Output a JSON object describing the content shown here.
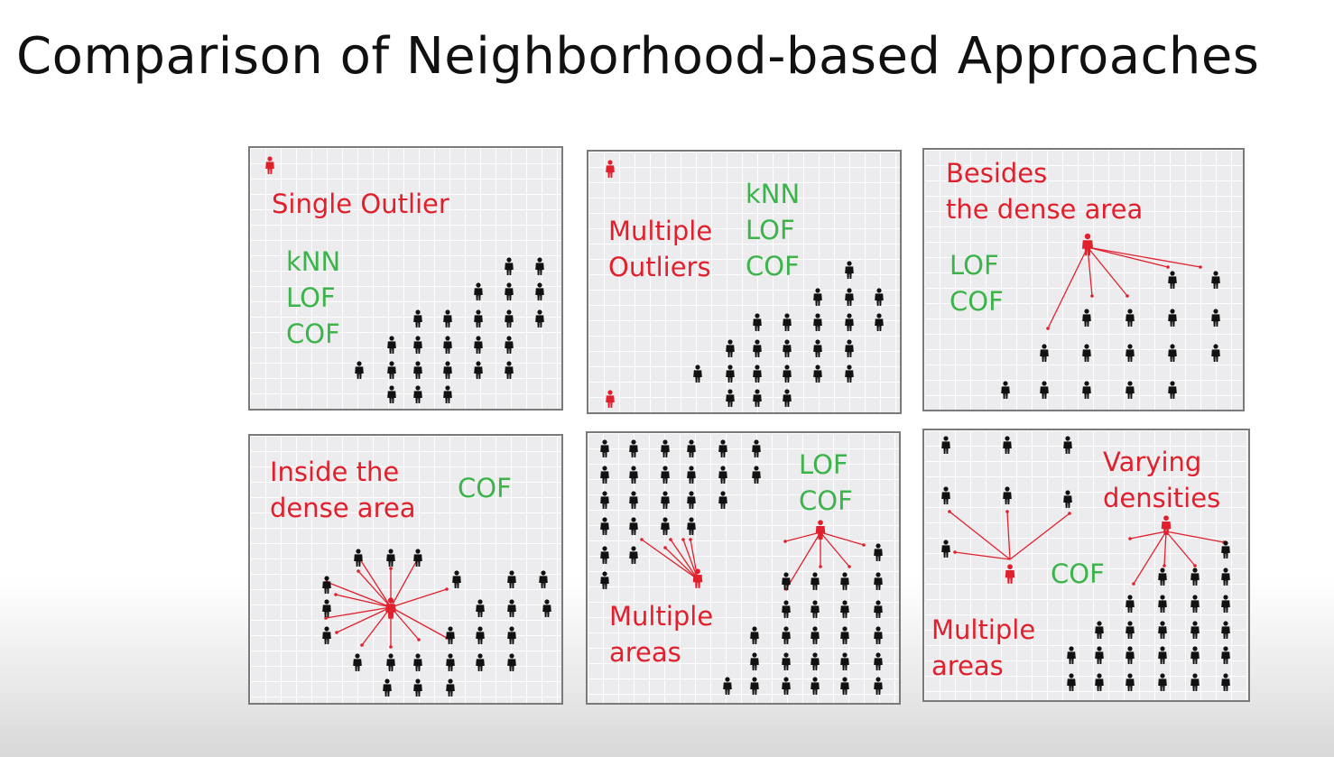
{
  "title": "Comparison of Neighborhood-based Approaches",
  "colors": {
    "outlier": "#e0202c",
    "method": "#3cb44b",
    "person": "#111111"
  },
  "panels": [
    {
      "scenario": [
        "Single Outlier"
      ],
      "methods": [
        "kNN",
        "LOF",
        "COF"
      ]
    },
    {
      "scenario": [
        "Multiple",
        "Outliers"
      ],
      "methods": [
        "kNN",
        "LOF",
        "COF"
      ]
    },
    {
      "scenario": [
        "Besides",
        "the dense area"
      ],
      "methods": [
        "LOF",
        "COF"
      ]
    },
    {
      "scenario": [
        "Inside the",
        "dense area"
      ],
      "methods": [
        "COF"
      ]
    },
    {
      "scenario": [
        "Multiple",
        "areas"
      ],
      "methods": [
        "LOF",
        "COF"
      ]
    },
    {
      "scenario": [
        "Varying",
        "densities"
      ],
      "scenario2": [
        "Multiple",
        "areas"
      ],
      "methods": [
        "COF"
      ]
    }
  ],
  "icons": {
    "person": "person-icon",
    "outlier": "outlier-person-icon"
  }
}
